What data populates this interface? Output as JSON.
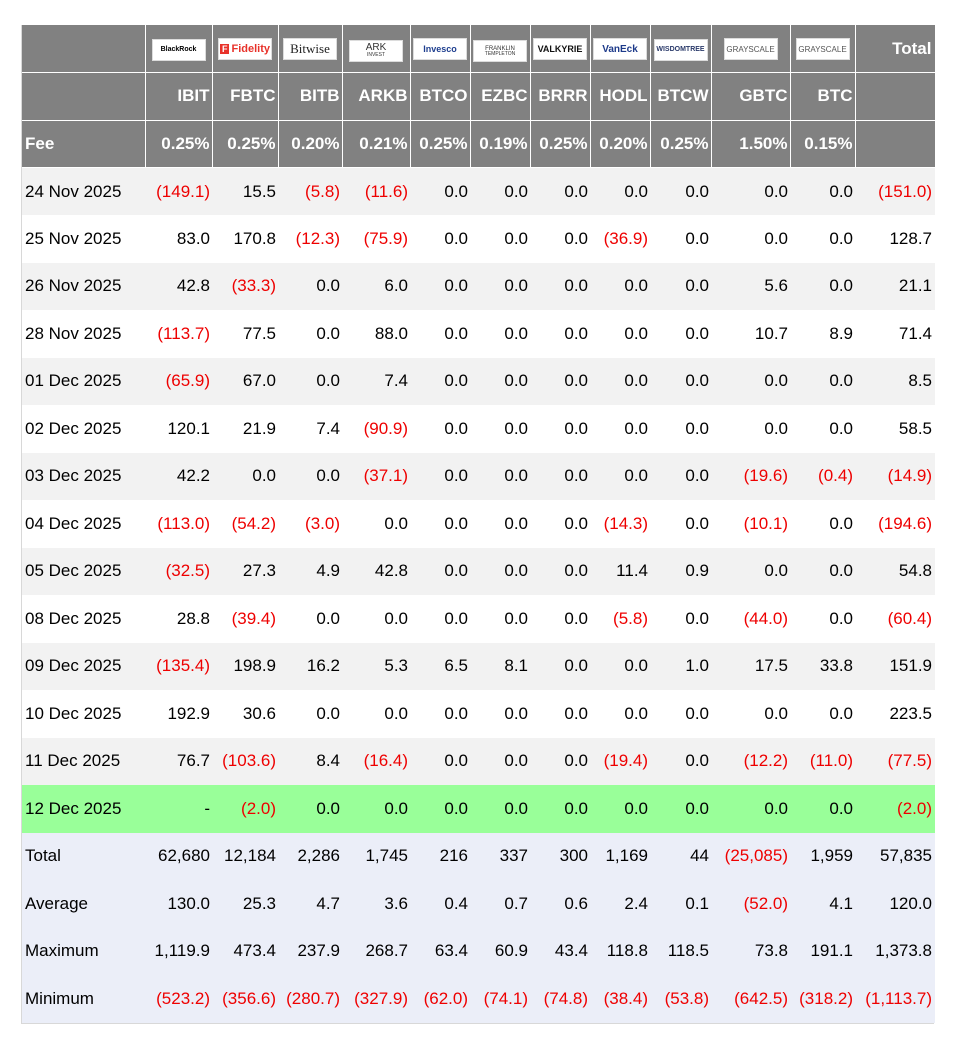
{
  "logos": [
    {
      "issuer": "BlackRock",
      "text": "BlackRock",
      "color": "#000000",
      "icon": "blackrock-logo"
    },
    {
      "issuer": "Fidelity",
      "text": "Fidelity",
      "color": "#e8322a",
      "icon": "fidelity-logo"
    },
    {
      "issuer": "Bitwise",
      "text": "Bitwise",
      "color": "#222222",
      "icon": "bitwise-logo"
    },
    {
      "issuer": "ARK Invest",
      "text": "ARK",
      "subtext": "INVEST",
      "color": "#333333",
      "icon": "ark-logo"
    },
    {
      "issuer": "Invesco",
      "text": "Invesco",
      "color": "#1f3f8f",
      "icon": "invesco-logo"
    },
    {
      "issuer": "Franklin Templeton",
      "text": "FRANKLIN",
      "subtext": "TEMPLETON",
      "color": "#333333",
      "icon": "franklin-templeton-logo"
    },
    {
      "issuer": "Valkyrie",
      "text": "VALKYRIE",
      "color": "#111111",
      "icon": "valkyrie-logo"
    },
    {
      "issuer": "VanEck",
      "text": "VanEck",
      "color": "#1d3a8a",
      "icon": "vaneck-logo"
    },
    {
      "issuer": "WisdomTree",
      "text": "WISDOMTREE",
      "color": "#2a3a6a",
      "icon": "wisdomtree-logo"
    },
    {
      "issuer": "Grayscale",
      "text": "GRAYSCALE",
      "color": "#555555",
      "icon": "grayscale-logo"
    },
    {
      "issuer": "Grayscale",
      "text": "GRAYSCALE",
      "color": "#555555",
      "icon": "grayscale-logo"
    }
  ],
  "header": {
    "total_label": "Total",
    "fee_label": "Fee",
    "tickers": [
      "IBIT",
      "FBTC",
      "BITB",
      "ARKB",
      "BTCO",
      "EZBC",
      "BRRR",
      "HODL",
      "BTCW",
      "GBTC",
      "BTC"
    ],
    "fees": [
      "0.25%",
      "0.25%",
      "0.20%",
      "0.21%",
      "0.25%",
      "0.19%",
      "0.25%",
      "0.20%",
      "0.25%",
      "1.50%",
      "0.15%"
    ]
  },
  "rows": [
    {
      "date": "24 Nov 2025",
      "values": [
        "(149.1)",
        "15.5",
        "(5.8)",
        "(11.6)",
        "0.0",
        "0.0",
        "0.0",
        "0.0",
        "0.0",
        "0.0",
        "0.0"
      ],
      "total": "(151.0)"
    },
    {
      "date": "25 Nov 2025",
      "values": [
        "83.0",
        "170.8",
        "(12.3)",
        "(75.9)",
        "0.0",
        "0.0",
        "0.0",
        "(36.9)",
        "0.0",
        "0.0",
        "0.0"
      ],
      "total": "128.7"
    },
    {
      "date": "26 Nov 2025",
      "values": [
        "42.8",
        "(33.3)",
        "0.0",
        "6.0",
        "0.0",
        "0.0",
        "0.0",
        "0.0",
        "0.0",
        "5.6",
        "0.0"
      ],
      "total": "21.1"
    },
    {
      "date": "28 Nov 2025",
      "values": [
        "(113.7)",
        "77.5",
        "0.0",
        "88.0",
        "0.0",
        "0.0",
        "0.0",
        "0.0",
        "0.0",
        "10.7",
        "8.9"
      ],
      "total": "71.4"
    },
    {
      "date": "01 Dec 2025",
      "values": [
        "(65.9)",
        "67.0",
        "0.0",
        "7.4",
        "0.0",
        "0.0",
        "0.0",
        "0.0",
        "0.0",
        "0.0",
        "0.0"
      ],
      "total": "8.5"
    },
    {
      "date": "02 Dec 2025",
      "values": [
        "120.1",
        "21.9",
        "7.4",
        "(90.9)",
        "0.0",
        "0.0",
        "0.0",
        "0.0",
        "0.0",
        "0.0",
        "0.0"
      ],
      "total": "58.5"
    },
    {
      "date": "03 Dec 2025",
      "values": [
        "42.2",
        "0.0",
        "0.0",
        "(37.1)",
        "0.0",
        "0.0",
        "0.0",
        "0.0",
        "0.0",
        "(19.6)",
        "(0.4)"
      ],
      "total": "(14.9)"
    },
    {
      "date": "04 Dec 2025",
      "values": [
        "(113.0)",
        "(54.2)",
        "(3.0)",
        "0.0",
        "0.0",
        "0.0",
        "0.0",
        "(14.3)",
        "0.0",
        "(10.1)",
        "0.0"
      ],
      "total": "(194.6)"
    },
    {
      "date": "05 Dec 2025",
      "values": [
        "(32.5)",
        "27.3",
        "4.9",
        "42.8",
        "0.0",
        "0.0",
        "0.0",
        "11.4",
        "0.9",
        "0.0",
        "0.0"
      ],
      "total": "54.8"
    },
    {
      "date": "08 Dec 2025",
      "values": [
        "28.8",
        "(39.4)",
        "0.0",
        "0.0",
        "0.0",
        "0.0",
        "0.0",
        "(5.8)",
        "0.0",
        "(44.0)",
        "0.0"
      ],
      "total": "(60.4)"
    },
    {
      "date": "09 Dec 2025",
      "values": [
        "(135.4)",
        "198.9",
        "16.2",
        "5.3",
        "6.5",
        "8.1",
        "0.0",
        "0.0",
        "1.0",
        "17.5",
        "33.8"
      ],
      "total": "151.9"
    },
    {
      "date": "10 Dec 2025",
      "values": [
        "192.9",
        "30.6",
        "0.0",
        "0.0",
        "0.0",
        "0.0",
        "0.0",
        "0.0",
        "0.0",
        "0.0",
        "0.0"
      ],
      "total": "223.5"
    },
    {
      "date": "11 Dec 2025",
      "values": [
        "76.7",
        "(103.6)",
        "8.4",
        "(16.4)",
        "0.0",
        "0.0",
        "0.0",
        "(19.4)",
        "0.0",
        "(12.2)",
        "(11.0)"
      ],
      "total": "(77.5)"
    },
    {
      "date": "12 Dec 2025",
      "values": [
        "-",
        "(2.0)",
        "0.0",
        "0.0",
        "0.0",
        "0.0",
        "0.0",
        "0.0",
        "0.0",
        "0.0",
        "0.0"
      ],
      "total": "(2.0)",
      "highlight": true
    }
  ],
  "summary": [
    {
      "label": "Total",
      "values": [
        "62,680",
        "12,184",
        "2,286",
        "1,745",
        "216",
        "337",
        "300",
        "1,169",
        "44",
        "(25,085)",
        "1,959"
      ],
      "total": "57,835"
    },
    {
      "label": "Average",
      "values": [
        "130.0",
        "25.3",
        "4.7",
        "3.6",
        "0.4",
        "0.7",
        "0.6",
        "2.4",
        "0.1",
        "(52.0)",
        "4.1"
      ],
      "total": "120.0"
    },
    {
      "label": "Maximum",
      "values": [
        "1,119.9",
        "473.4",
        "237.9",
        "268.7",
        "63.4",
        "60.9",
        "43.4",
        "118.8",
        "118.5",
        "73.8",
        "191.1"
      ],
      "total": "1,373.8"
    },
    {
      "label": "Minimum",
      "values": [
        "(523.2)",
        "(356.6)",
        "(280.7)",
        "(327.9)",
        "(62.0)",
        "(74.1)",
        "(74.8)",
        "(38.4)",
        "(53.8)",
        "(642.5)",
        "(318.2)"
      ],
      "total": "(1,113.7)"
    }
  ],
  "colors": {
    "header_bg": "#818181",
    "negative": "#ee0000",
    "highlight_row": "#99ff99",
    "summary_bg": "#ebeef8",
    "stripe": "#f2f2f2"
  }
}
